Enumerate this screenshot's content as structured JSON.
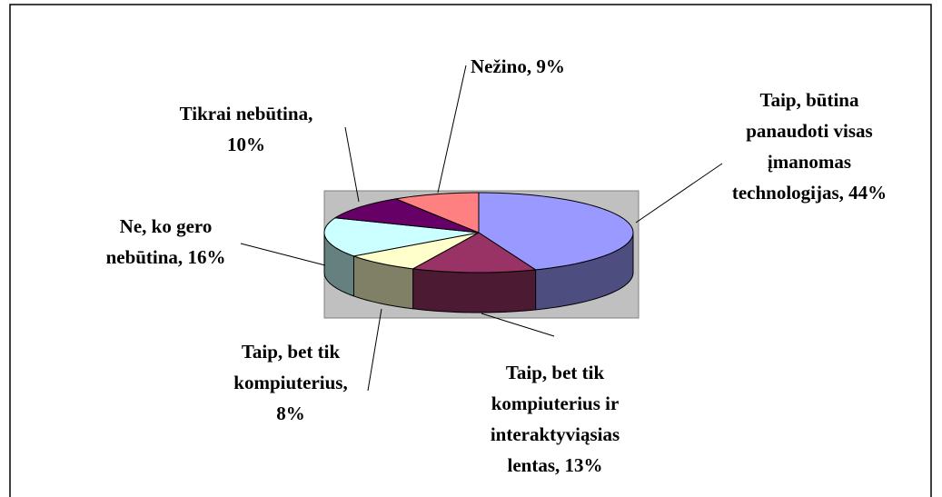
{
  "chart_data": {
    "type": "pie",
    "three_d": true,
    "categories": [
      "Taip, būtina panaudoti visas įmanomas technologijas,",
      "Taip, bet tik kompiuterius ir interaktyviąsias lentas,",
      "Taip, bet tik kompiuterius,",
      "Ne, ko gero nebūtina,",
      "Tikrai nebūtina,",
      "Nežino,"
    ],
    "values": [
      44,
      13,
      8,
      16,
      10,
      9
    ],
    "value_labels": [
      "44%",
      "13%",
      "8%",
      "16%",
      "10%",
      "9%"
    ],
    "colors": [
      "#9999FF",
      "#993366",
      "#FFFFCC",
      "#CCFFFF",
      "#660066",
      "#FF8080"
    ],
    "plot_background": "#C0C0C0"
  }
}
